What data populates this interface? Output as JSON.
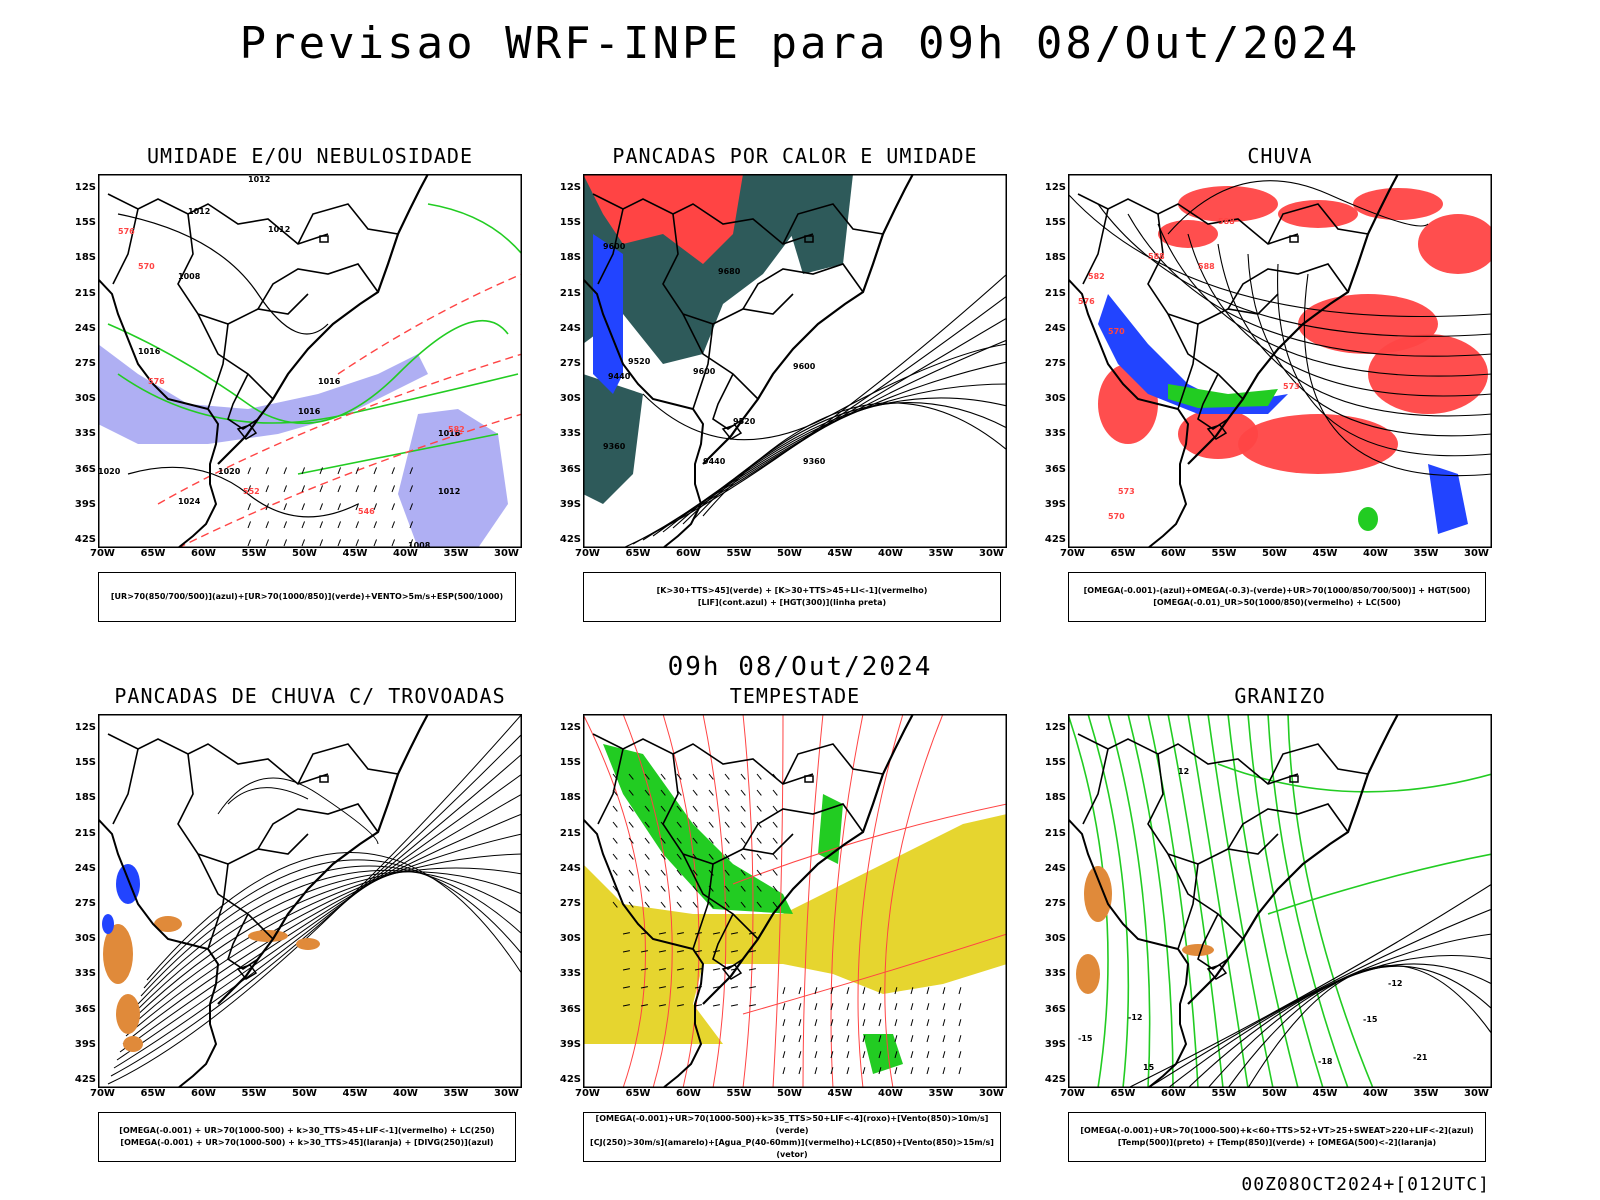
{
  "title": "Previsao WRF-INPE  para 09h 08/Out/2024",
  "subtitle": "09h 08/Out/2024",
  "footer": "00Z08OCT2024+[012UTC]",
  "lat_labels": [
    "12S",
    "15S",
    "18S",
    "21S",
    "24S",
    "27S",
    "30S",
    "33S",
    "36S",
    "39S",
    "42S"
  ],
  "lon_labels": [
    "70W",
    "65W",
    "60W",
    "55W",
    "50W",
    "45W",
    "40W",
    "35W",
    "30W"
  ],
  "colors": {
    "humid_blue": "#9b9bf0",
    "green": "#22cc22",
    "red": "#ff4444",
    "dark_teal": "#2e5a5a",
    "blue": "#2244ff",
    "yellow": "#e6d52f",
    "orange": "#e08a3a",
    "coast": "#000000"
  },
  "panels": [
    {
      "title": "UMIDADE E/OU NEBULOSIDADE",
      "legend": [
        "[UR>70(850/700/500)](azul)+[UR>70(1000/850)](verde)+VENTO>5m/s+ESP(500/1000)"
      ],
      "contour_labels": [
        "1012",
        "1012",
        "1012",
        "1008",
        "1016",
        "1016",
        "1020",
        "1024",
        "1020",
        "1016",
        "1012",
        "1008",
        "1016",
        "570",
        "576",
        "576",
        "582",
        "552",
        "546"
      ]
    },
    {
      "title": "PANCADAS POR CALOR E UMIDADE",
      "legend": [
        "[K>30+TTS>45](verde) + [K>30+TTS>45+LI<-1](vermelho)",
        "[LIF](cont.azul) + [HGT(300)](linha preta)"
      ],
      "contour_labels": [
        "9600",
        "9680",
        "9520",
        "9440",
        "9600",
        "9600",
        "9520",
        "9360",
        "9440",
        "9360"
      ]
    },
    {
      "title": "CHUVA",
      "legend": [
        "[OMEGA(-0.001)-(azul)+OMEGA(-0.3)-(verde)+UR>70(1000/850/700/500)] + HGT(500)",
        "[OMEGA(-0.01)_UR>50(1000/850)(vermelho) + LC(500)"
      ],
      "contour_labels": [
        "588",
        "588",
        "588",
        "582",
        "576",
        "570",
        "573",
        "570",
        "573"
      ]
    },
    {
      "title": "PANCADAS DE CHUVA C/ TROVOADAS",
      "legend": [
        "[OMEGA(-0.001) + UR>70(1000-500) + k>30_TTS>45+LIF<-1](vermelho) + LC(250)",
        "[OMEGA(-0.001) + UR>70(1000-500) + k>30_TTS>45](laranja) + [DIVG(250)](azul)"
      ],
      "contour_labels": []
    },
    {
      "title": "TEMPESTADE",
      "legend": [
        "[OMEGA(-0.001)+UR>70(1000-500)+k>35_TTS>50+LIF<-4](roxo)+[Vento(850)>10m/s](verde)",
        "[CJ(250)>30m/s](amarelo)+[Agua_P(40-60mm)](vermelho)+LC(850)+[Vento(850)>15m/s](vetor)"
      ],
      "contour_labels": []
    },
    {
      "title": "GRANIZO",
      "legend": [
        "[OMEGA(-0.001)+UR>70(1000-500)+k<60+TTS>52+VT>25+SWEAT>220+LIF<-2](azul)",
        "[Temp(500)](preto) + [Temp(850)](verde) + [OMEGA(500)<-2](laranja)"
      ],
      "contour_labels": [
        "-12",
        "-15",
        "-12",
        "-18",
        "-21",
        "-15",
        "15",
        "12"
      ]
    }
  ]
}
